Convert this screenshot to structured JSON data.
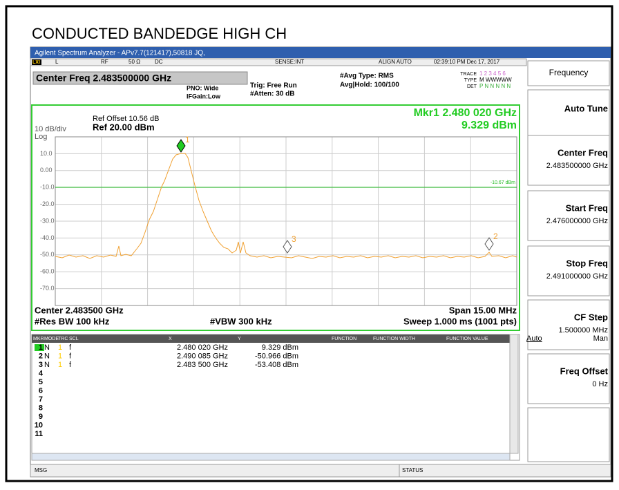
{
  "page_title": "CONDUCTED BANDEDGE HIGH CH",
  "window": {
    "title_bar": "Agilent Spectrum Analyzer - APv7.7(121417),50818 JQ,",
    "status_bar": {
      "lxi": "LXI",
      "l": "L",
      "rf": "RF",
      "impedance": "50 Ω",
      "coupling": "DC",
      "sense": "SENSE:INT",
      "align": "ALIGN AUTO",
      "datetime": "02:39:10 PM Dec 17, 2017"
    }
  },
  "header": {
    "center_freq": "Center Freq 2.483500000 GHz",
    "pno": "PNO: Wide",
    "ifgain": "IFGain:Low",
    "trig": "Trig: Free Run",
    "atten": "#Atten: 30 dB",
    "avg_type": "#Avg Type: RMS",
    "avg_hold": "Avg|Hold: 100/100",
    "trace_label": "TRACE",
    "trace_nums": "1 2 3 4 5 6",
    "type_label": "TYPE",
    "type_val": "M WWWWW",
    "det_label": "DET",
    "det_val": "P N N N N N"
  },
  "graph": {
    "ref_offset": "Ref Offset 10.56 dB",
    "scale": "10 dB/div",
    "ref_level": "Ref 20.00 dBm",
    "scale_type": "Log",
    "marker_freq": "Mkr1 2.480 020 GHz",
    "marker_amp": "9.329 dBm",
    "display_line": "-10.67 dBm",
    "y_labels": [
      "10.0",
      "0.00",
      "-10.0",
      "-20.0",
      "-30.0",
      "-40.0",
      "-50.0",
      "-60.0",
      "-70.0"
    ],
    "markers": [
      "1",
      "2",
      "3"
    ],
    "center": "Center 2.483500 GHz",
    "span": "Span 15.00 MHz",
    "rbw": "#Res BW 100 kHz",
    "vbw": "#VBW 300 kHz",
    "sweep": "Sweep  1.000 ms (1001 pts)"
  },
  "marker_table": {
    "headers": [
      "MKR",
      "MODE",
      "TRC",
      "SCL",
      "X",
      "Y",
      "FUNCTION",
      "FUNCTION WIDTH",
      "FUNCTION VALUE"
    ],
    "rows": [
      [
        "1",
        "N",
        "1",
        "f",
        "2.480 020 GHz",
        "9.329 dBm"
      ],
      [
        "2",
        "N",
        "1",
        "f",
        "2.490 085 GHz",
        "-50.966 dBm"
      ],
      [
        "3",
        "N",
        "1",
        "f",
        "2.483 500 GHz",
        "-53.408 dBm"
      ],
      [
        "4"
      ],
      [
        "5"
      ],
      [
        "6"
      ],
      [
        "7"
      ],
      [
        "8"
      ],
      [
        "9"
      ],
      [
        "10"
      ],
      [
        "11"
      ]
    ]
  },
  "softkeys": {
    "menu": "Frequency",
    "keys": [
      {
        "label": "Auto Tune"
      },
      {
        "label": "Center Freq",
        "value": "2.483500000 GHz"
      },
      {
        "label": "Start Freq",
        "value": "2.476000000 GHz"
      },
      {
        "label": "Stop Freq",
        "value": "2.491000000 GHz"
      },
      {
        "label": "CF Step",
        "value": "1.500000 MHz",
        "auto": "Auto",
        "man": "Man"
      },
      {
        "label": "Freq Offset",
        "value": "0 Hz"
      }
    ]
  },
  "status": {
    "msg": "MSG",
    "status": "STATUS"
  }
}
